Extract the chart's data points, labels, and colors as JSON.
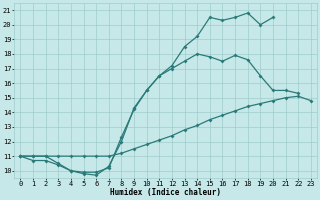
{
  "bg_color": "#c6e8e8",
  "grid_color": "#a0cccc",
  "line_color": "#2a7a7a",
  "marker": "D",
  "markersize": 2.0,
  "linewidth": 0.9,
  "xlabel": "Humidex (Indice chaleur)",
  "xlim": [
    -0.5,
    23.5
  ],
  "ylim": [
    9.5,
    21.5
  ],
  "xticks": [
    0,
    1,
    2,
    3,
    4,
    5,
    6,
    7,
    8,
    9,
    10,
    11,
    12,
    13,
    14,
    15,
    16,
    17,
    18,
    19,
    20,
    21,
    22,
    23
  ],
  "yticks": [
    10,
    11,
    12,
    13,
    14,
    15,
    16,
    17,
    18,
    19,
    20,
    21
  ],
  "line1_x": [
    0,
    1,
    2,
    3,
    4,
    5,
    6,
    7,
    8,
    9,
    10,
    11,
    12,
    13,
    14,
    15,
    16,
    17,
    18,
    19,
    20
  ],
  "line1_y": [
    11,
    10.7,
    10.7,
    10.4,
    10.0,
    9.8,
    9.7,
    10.3,
    12.0,
    14.3,
    15.5,
    16.5,
    17.2,
    18.5,
    19.2,
    20.5,
    20.3,
    20.5,
    20.8,
    20.0,
    20.5
  ],
  "line2_x": [
    0,
    1,
    2,
    3,
    4,
    5,
    6,
    7,
    8,
    9,
    10,
    11,
    12,
    13,
    14,
    15,
    16,
    17,
    18,
    19,
    20,
    21,
    22,
    23
  ],
  "line2_y": [
    11,
    11,
    11,
    11,
    11,
    11,
    11,
    11,
    11.2,
    11.5,
    11.8,
    12.1,
    12.4,
    12.8,
    13.1,
    13.5,
    13.8,
    14.1,
    14.4,
    14.6,
    14.8,
    15.0,
    15.1,
    14.8
  ],
  "line3_x": [
    0,
    1,
    2,
    3,
    4,
    5,
    6,
    7,
    8,
    9,
    10,
    11,
    12,
    13,
    14,
    15,
    16,
    17,
    18,
    19,
    20,
    21,
    22
  ],
  "line3_y": [
    11,
    11,
    11,
    10.5,
    10.0,
    9.9,
    9.9,
    10.2,
    12.3,
    14.2,
    15.5,
    16.5,
    17.0,
    17.5,
    18.0,
    17.8,
    17.5,
    17.9,
    17.6,
    16.5,
    15.5,
    15.5,
    15.3
  ],
  "font_family": "monospace",
  "tick_fontsize": 5.0,
  "xlabel_fontsize": 5.5
}
